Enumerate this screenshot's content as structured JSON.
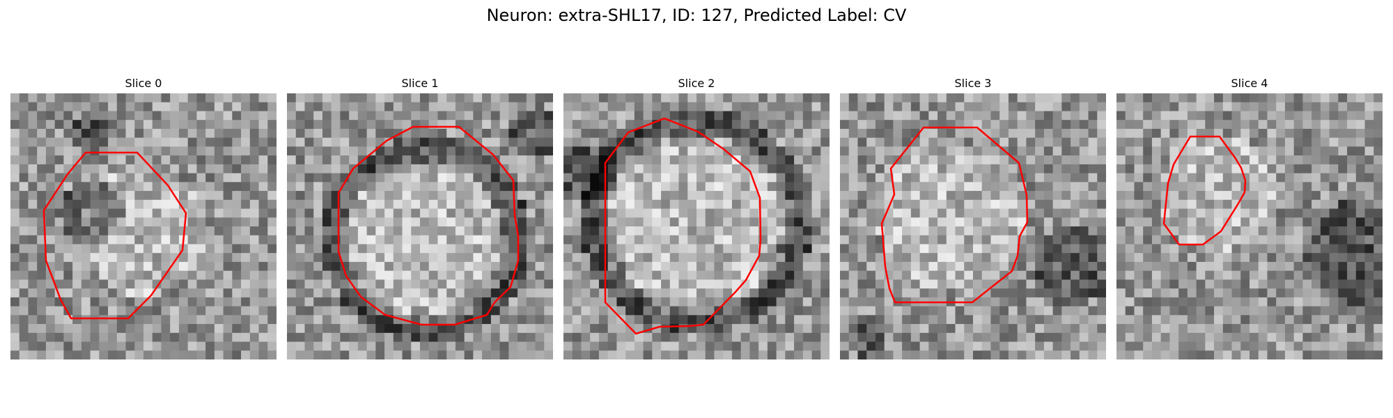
{
  "title": "Neuron: extra-SHL17, ID: 127, Predicted Label: CV",
  "outline_color": "#ff0000",
  "colormap": "grayscale",
  "grid_size": 30,
  "slices": [
    {
      "label": "Slice 0",
      "ring": false,
      "center": [
        0.5,
        0.52
      ],
      "radius": 0.24,
      "dark_areas": [
        [
          0.3,
          0.45,
          0.12
        ],
        [
          0.3,
          0.15,
          0.08
        ]
      ]
    },
    {
      "label": "Slice 1",
      "ring": true,
      "center": [
        0.52,
        0.55
      ],
      "radius": 0.32,
      "dark_areas": [
        [
          0.95,
          0.15,
          0.1
        ]
      ]
    },
    {
      "label": "Slice 2",
      "ring": true,
      "center": [
        0.5,
        0.48
      ],
      "radius": 0.36,
      "dark_areas": [
        [
          0.1,
          0.3,
          0.1
        ]
      ]
    },
    {
      "label": "Slice 3",
      "ring": false,
      "center": [
        0.42,
        0.47
      ],
      "radius": 0.28,
      "dark_areas": [
        [
          0.88,
          0.65,
          0.15
        ],
        [
          0.1,
          0.92,
          0.08
        ]
      ]
    },
    {
      "label": "Slice 4",
      "ring": false,
      "center": [
        0.37,
        0.37
      ],
      "radius": 0.22,
      "dark_areas": [
        [
          0.9,
          0.6,
          0.2
        ]
      ]
    }
  ]
}
